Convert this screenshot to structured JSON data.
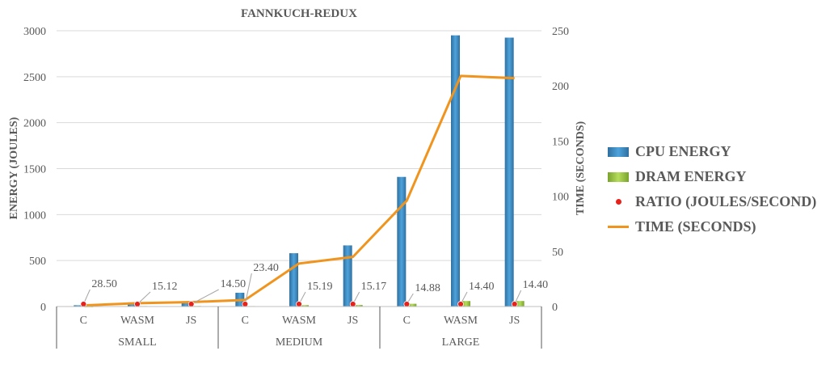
{
  "chart_data": {
    "type": "bar",
    "title": "FANNKUCH-REDUX",
    "ylabel": "ENERGY (JOULES)",
    "y2label": "TIME (SECONDS)",
    "ylim": [
      0,
      3000
    ],
    "y2lim": [
      0,
      250
    ],
    "yticks": [
      0,
      500,
      1000,
      1500,
      2000,
      2500,
      3000
    ],
    "y2ticks": [
      0,
      50,
      100,
      150,
      200,
      250
    ],
    "categories": [
      "C",
      "WASM",
      "JS",
      "C",
      "WASM",
      "JS",
      "C",
      "WASM",
      "JS"
    ],
    "groups": [
      {
        "label": "SMALL",
        "size": 3
      },
      {
        "label": "MEDIUM",
        "size": 3
      },
      {
        "label": "LARGE",
        "size": 3
      }
    ],
    "series": [
      {
        "name": "CPU ENERGY",
        "type": "bar",
        "axis": "left",
        "values": [
          14,
          45,
          50,
          150,
          580,
          665,
          1410,
          2950,
          2925
        ]
      },
      {
        "name": "DRAM ENERGY",
        "type": "bar",
        "axis": "left",
        "values": [
          2,
          5,
          6,
          5,
          15,
          17,
          30,
          60,
          60
        ]
      },
      {
        "name": "RATIO (JOULES/SECOND)",
        "type": "scatter",
        "axis": "none",
        "values": [
          28.5,
          15.12,
          14.5,
          23.4,
          15.19,
          15.17,
          14.88,
          14.4,
          14.4
        ],
        "labels": [
          "28.50",
          "15.12",
          "14.50",
          "23.40",
          "15.19",
          "15.17",
          "14.88",
          "14.40",
          "14.40"
        ]
      },
      {
        "name": "TIME (SECONDS)",
        "type": "line",
        "axis": "right",
        "values": [
          1,
          3,
          4,
          6,
          39,
          45,
          96,
          209,
          207
        ]
      }
    ],
    "colors": {
      "cpu": "#3d86c0",
      "dram": "#92c23e",
      "ratio": "#e8211b",
      "time": "#f0941d",
      "grid": "#d9d9d9",
      "axis": "#595959"
    },
    "legend_position": "right",
    "grid": true
  }
}
